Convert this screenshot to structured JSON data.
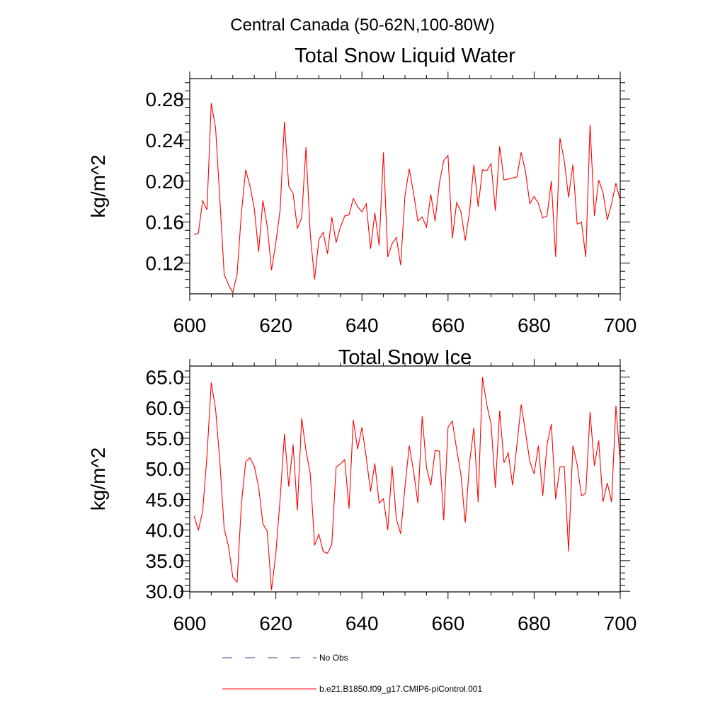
{
  "figure": {
    "main_title": "Central Canada (50-62N,100-80W)"
  },
  "legend": {
    "entries": [
      {
        "label": "No Obs",
        "style": "dashed",
        "color": "#3f3f8f"
      },
      {
        "label": "b.e21.B1850.f09_g17.CMIP6-piControl.001",
        "style": "solid",
        "color": "#ff0000"
      }
    ]
  },
  "chart_data": [
    {
      "type": "line",
      "title": "Total Snow Liquid Water",
      "xlabel": "",
      "ylabel": "kg/m^2",
      "xlim": [
        600,
        700
      ],
      "ylim": [
        0.09,
        0.3
      ],
      "x_ticks": [
        600,
        620,
        640,
        660,
        680,
        700
      ],
      "x_tick_labels": [
        "600",
        "620",
        "640",
        "660",
        "680",
        "700"
      ],
      "y_ticks": [
        0.12,
        0.16,
        0.2,
        0.24,
        0.28
      ],
      "y_tick_labels": [
        "0.12",
        "0.16",
        "0.20",
        "0.24",
        "0.28"
      ],
      "series": [
        {
          "name": "b.e21.B1850.f09_g17.CMIP6-piControl.001",
          "color": "#ff0000",
          "x_start": 601,
          "values": [
            0.148,
            0.149,
            0.181,
            0.172,
            0.276,
            0.252,
            0.182,
            0.109,
            0.099,
            0.091,
            0.109,
            0.169,
            0.211,
            0.195,
            0.173,
            0.131,
            0.181,
            0.156,
            0.113,
            0.14,
            0.172,
            0.258,
            0.195,
            0.188,
            0.154,
            0.164,
            0.233,
            0.148,
            0.104,
            0.143,
            0.15,
            0.129,
            0.165,
            0.14,
            0.155,
            0.166,
            0.167,
            0.183,
            0.175,
            0.17,
            0.178,
            0.134,
            0.169,
            0.137,
            0.228,
            0.126,
            0.139,
            0.145,
            0.118,
            0.186,
            0.212,
            0.188,
            0.161,
            0.165,
            0.155,
            0.187,
            0.161,
            0.198,
            0.22,
            0.225,
            0.144,
            0.179,
            0.17,
            0.142,
            0.17,
            0.216,
            0.175,
            0.211,
            0.21,
            0.217,
            0.171,
            0.234,
            0.201,
            0.202,
            0.203,
            0.204,
            0.228,
            0.209,
            0.178,
            0.185,
            0.178,
            0.164,
            0.166,
            0.2,
            0.126,
            0.242,
            0.22,
            0.184,
            0.216,
            0.158,
            0.16,
            0.126,
            0.255,
            0.166,
            0.201,
            0.189,
            0.162,
            0.178,
            0.198,
            0.181
          ]
        }
      ]
    },
    {
      "type": "line",
      "title": "Total Snow Ice",
      "xlabel": "",
      "ylabel": "kg/m^2",
      "xlim": [
        600,
        700
      ],
      "ylim": [
        29.9,
        66.8
      ],
      "x_ticks": [
        600,
        620,
        640,
        660,
        680,
        700
      ],
      "x_tick_labels": [
        "600",
        "620",
        "640",
        "660",
        "680",
        "700"
      ],
      "y_ticks": [
        30.0,
        35.0,
        40.0,
        45.0,
        50.0,
        55.0,
        60.0,
        65.0
      ],
      "y_tick_labels": [
        "30.0",
        "35.0",
        "40.0",
        "45.0",
        "50.0",
        "55.0",
        "60.0",
        "65.0"
      ],
      "series": [
        {
          "name": "b.e21.B1850.f09_g17.CMIP6-piControl.001",
          "color": "#ff0000",
          "x_start": 601,
          "values": [
            42.3,
            40.0,
            43.1,
            52.1,
            64.1,
            59.8,
            51.1,
            40.2,
            37.4,
            32.3,
            31.5,
            44.3,
            51.2,
            51.8,
            50.4,
            47.1,
            41.0,
            39.8,
            30.2,
            36.2,
            45.1,
            55.7,
            47.1,
            54.0,
            43.2,
            58.3,
            53.0,
            49.2,
            37.5,
            39.3,
            36.5,
            36.2,
            37.6,
            50.3,
            50.8,
            51.5,
            43.5,
            58.0,
            53.2,
            56.8,
            51.9,
            46.3,
            50.9,
            44.4,
            45.1,
            40.0,
            50.5,
            41.8,
            39.4,
            47.1,
            53.8,
            49.6,
            44.4,
            58.6,
            50.2,
            47.3,
            53.0,
            52.9,
            41.6,
            56.8,
            57.8,
            53.2,
            49.1,
            41.2,
            51.0,
            56.7,
            44.6,
            65.0,
            60.5,
            57.3,
            46.9,
            59.5,
            51.0,
            52.6,
            47.3,
            53.9,
            60.5,
            56.0,
            51.2,
            49.2,
            53.8,
            45.6,
            54.0,
            57.3,
            45.0,
            50.3,
            50.4,
            36.5,
            53.8,
            50.7,
            45.6,
            46.0,
            59.3,
            50.5,
            54.6,
            44.6,
            47.7,
            44.6,
            60.3,
            51.1
          ]
        }
      ]
    }
  ]
}
